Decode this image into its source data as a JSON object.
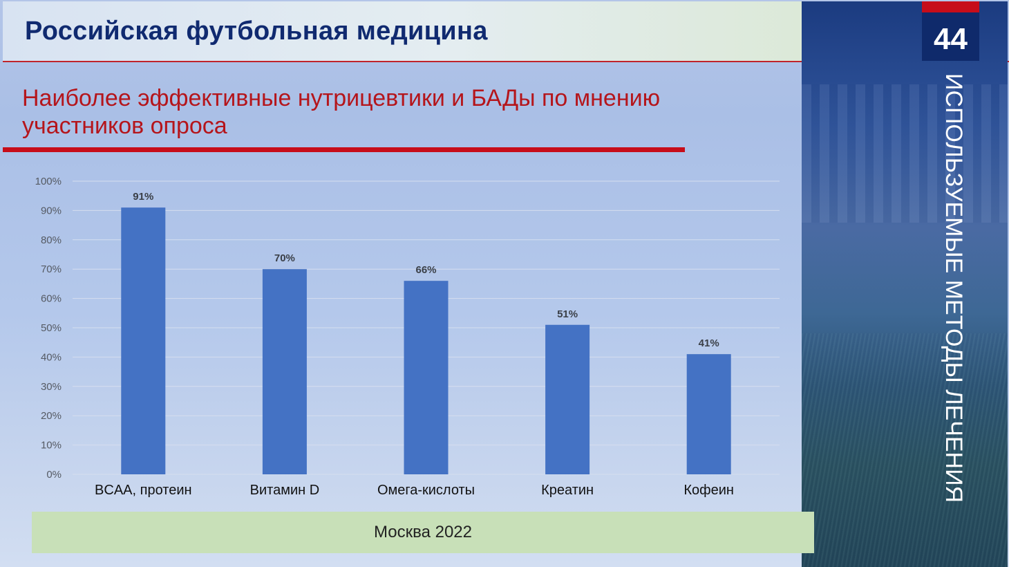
{
  "slide": {
    "header_title": "Российская футбольная медицина",
    "subtitle": "Наиболее эффективные нутрицевтики и БАДы по мнению участников опроса",
    "page_number": "44",
    "side_text": "ИСПОЛЬЗУЕМЫЕ МЕТОДЫ ЛЕЧЕНИЯ",
    "footer": "Москва 2022"
  },
  "colors": {
    "bar": "#4472c4",
    "title": "#102a70",
    "subtitle": "#b5151b",
    "accent_red": "#c70d1a",
    "footer_bg": "#c8e0b8"
  },
  "chart_data": {
    "type": "bar",
    "title": "",
    "xlabel": "",
    "ylabel": "",
    "categories": [
      "BCAA, протеин",
      "Витамин D",
      "Омега-кислоты",
      "Креатин",
      "Кофеин"
    ],
    "values": [
      91,
      70,
      66,
      51,
      41
    ],
    "data_labels": [
      "91%",
      "70%",
      "66%",
      "51%",
      "41%"
    ],
    "ylim": [
      0,
      100
    ],
    "yticks": [
      "0%",
      "10%",
      "20%",
      "30%",
      "40%",
      "50%",
      "60%",
      "70%",
      "80%",
      "90%",
      "100%"
    ],
    "grid": true,
    "legend": "none"
  }
}
